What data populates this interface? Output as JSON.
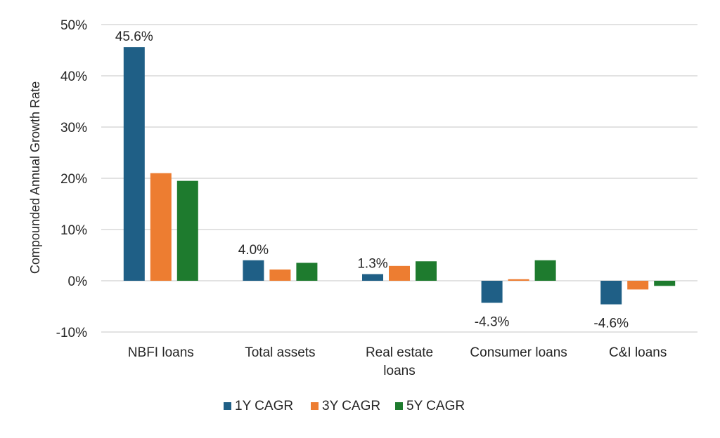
{
  "chart_data": {
    "type": "bar",
    "ylabel": "Compounded Annual Growth Rate",
    "ylim": [
      -10,
      50
    ],
    "yticks": [
      "50%",
      "40%",
      "30%",
      "20%",
      "10%",
      "0%",
      "-10%"
    ],
    "ytick_values": [
      50,
      40,
      30,
      20,
      10,
      0,
      -10
    ],
    "grid": true,
    "legend_position": "bottom",
    "categories": [
      [
        "NBFI loans"
      ],
      [
        "Total assets"
      ],
      [
        "Real estate",
        "loans"
      ],
      [
        "Consumer loans"
      ],
      [
        "C&I loans"
      ]
    ],
    "series": [
      {
        "name": "1Y CAGR",
        "color": "#1f5f86",
        "values": [
          45.6,
          4.0,
          1.3,
          -4.3,
          -4.6
        ]
      },
      {
        "name": "3Y CAGR",
        "color": "#ed7d31",
        "values": [
          21.0,
          2.2,
          2.9,
          0.3,
          -1.7
        ]
      },
      {
        "name": "5Y CAGR",
        "color": "#1e7b2e",
        "values": [
          19.5,
          3.5,
          3.8,
          4.0,
          -1.0
        ]
      }
    ],
    "data_labels": [
      {
        "series": 0,
        "category": 0,
        "text": "45.6%"
      },
      {
        "series": 0,
        "category": 1,
        "text": "4.0%"
      },
      {
        "series": 0,
        "category": 2,
        "text": "1.3%"
      },
      {
        "series": 0,
        "category": 3,
        "text": "-4.3%"
      },
      {
        "series": 0,
        "category": 4,
        "text": "-4.6%"
      }
    ]
  }
}
